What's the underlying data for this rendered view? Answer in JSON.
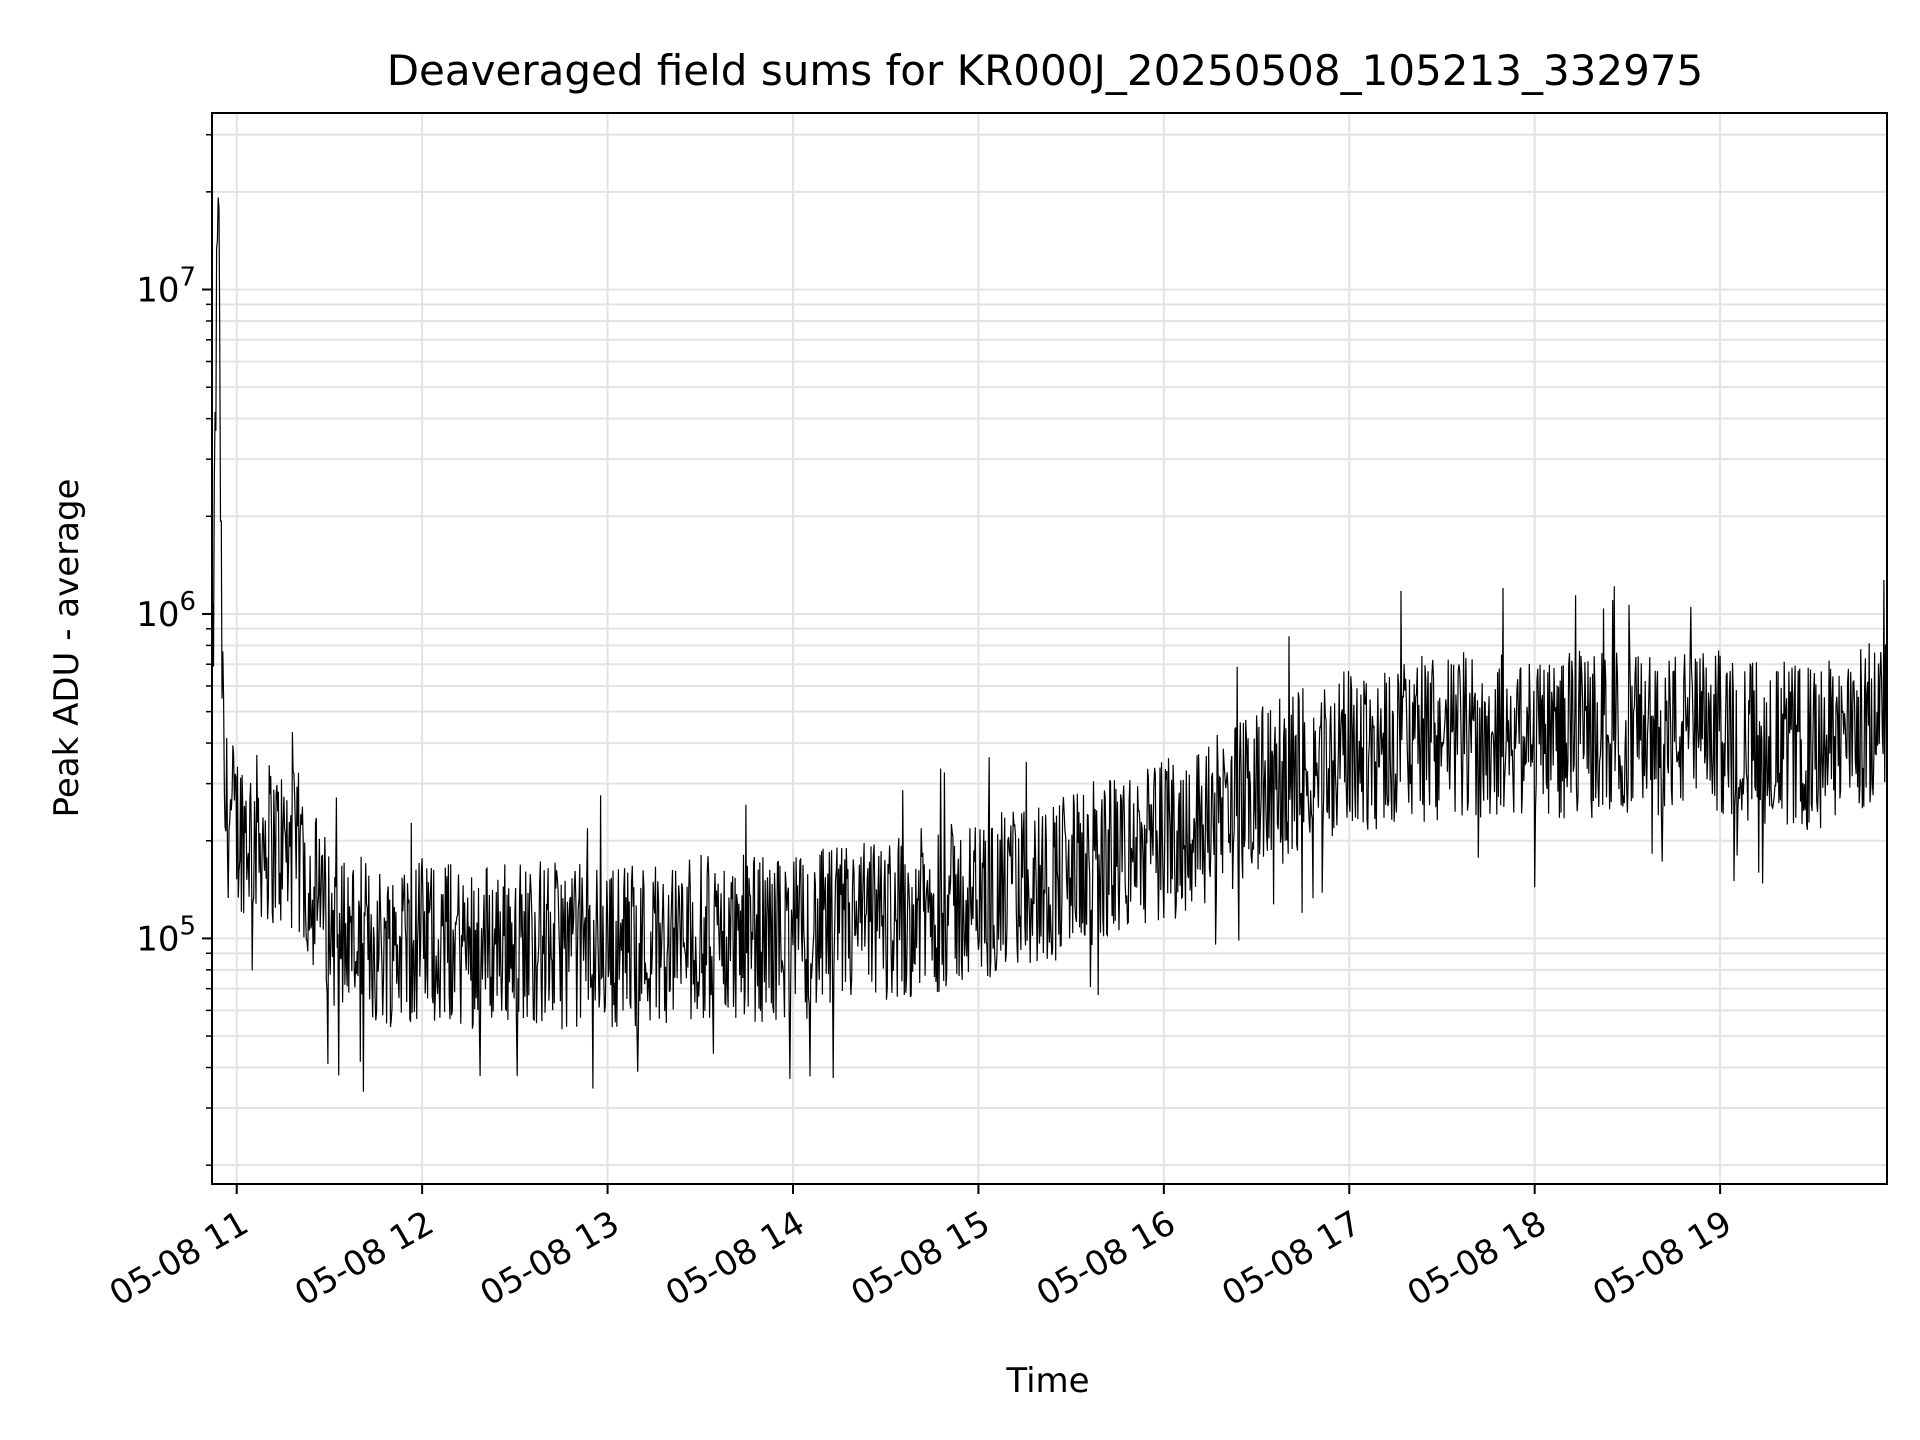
{
  "chart_data": {
    "type": "line",
    "title": "Deaveraged field sums for KR000J_20250508_105213_332975",
    "xlabel": "Time",
    "ylabel": "Peak ADU - average",
    "y_scale": "log",
    "ylim": [
      17500,
      35000000
    ],
    "xlim": [
      "2025-05-08 10:52",
      "2025-05-08 19:54"
    ],
    "grid": true,
    "line_color": "#000000",
    "x_ticks": [
      "05-08 11",
      "05-08 12",
      "05-08 13",
      "05-08 14",
      "05-08 15",
      "05-08 16",
      "05-08 17",
      "05-08 18",
      "05-08 19"
    ],
    "y_ticks": [
      {
        "base": "10",
        "exp": "5",
        "value": 100000
      },
      {
        "base": "10",
        "exp": "6",
        "value": 1000000
      },
      {
        "base": "10",
        "exp": "7",
        "value": 10000000
      }
    ],
    "series": [
      {
        "x": [
          "2025-05-08 10:52",
          "2025-05-08 10:54",
          "2025-05-08 10:55",
          "2025-05-08 10:56",
          "2025-05-08 11:00",
          "2025-05-08 11:10",
          "2025-05-08 11:20",
          "2025-05-08 11:30",
          "2025-05-08 11:45",
          "2025-05-08 12:00",
          "2025-05-08 12:15",
          "2025-05-08 12:30",
          "2025-05-08 12:45",
          "2025-05-08 13:00",
          "2025-05-08 13:30",
          "2025-05-08 14:00",
          "2025-05-08 14:30",
          "2025-05-08 15:00",
          "2025-05-08 15:30",
          "2025-05-08 16:00",
          "2025-05-08 16:30",
          "2025-05-08 17:00",
          "2025-05-08 17:30",
          "2025-05-08 18:00",
          "2025-05-08 18:30",
          "2025-05-08 19:00",
          "2025-05-08 19:30",
          "2025-05-08 19:54"
        ],
        "y": [
          350000,
          25000000,
          1100000,
          250000,
          220000,
          200000,
          180000,
          110000,
          95000,
          100000,
          95000,
          100000,
          95000,
          95000,
          100000,
          100000,
          115000,
          130000,
          160000,
          200000,
          280000,
          380000,
          420000,
          420000,
          430000,
          430000,
          380000,
          480000
        ]
      }
    ]
  }
}
